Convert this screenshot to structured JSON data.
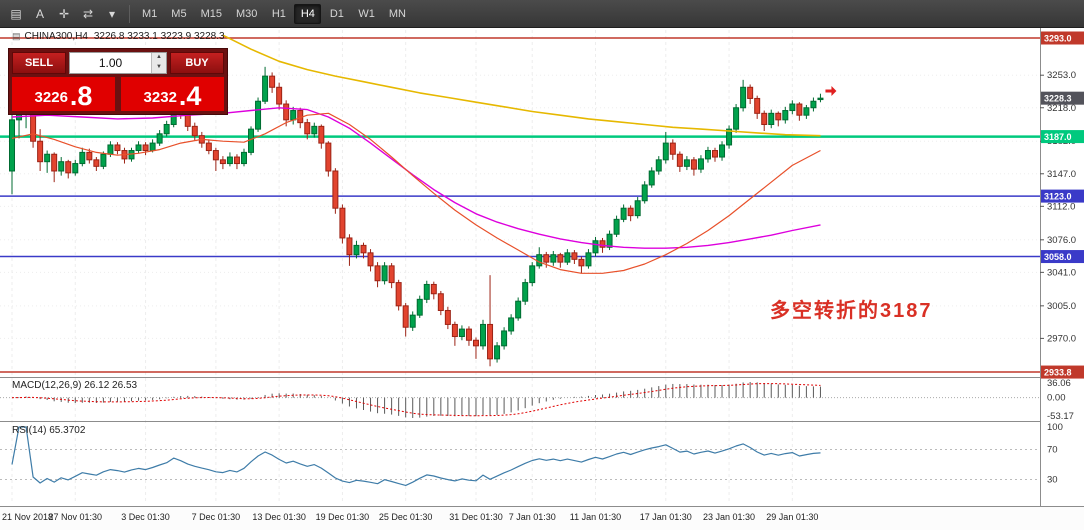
{
  "toolbar": {
    "icons": [
      {
        "name": "new-chart-icon",
        "glyph": "▤"
      },
      {
        "name": "text-label-icon",
        "glyph": "A"
      },
      {
        "name": "crosshair-icon",
        "glyph": "✛"
      },
      {
        "name": "templates-icon",
        "glyph": "⇄"
      },
      {
        "name": "chevron-down-icon",
        "glyph": "▾"
      }
    ],
    "timeframes": [
      "M1",
      "M5",
      "M15",
      "M30",
      "H1",
      "H4",
      "D1",
      "W1",
      "MN"
    ],
    "active_timeframe": "H4"
  },
  "chart_data": {
    "type": "candlestick",
    "symbol": "CHINA300",
    "period": "H4",
    "title_symbol": "CHINA300,H4",
    "title_ohlc": "3226.8 3233.1 3223.9 3228.3",
    "annotation": {
      "text": "多空转折的3187"
    },
    "y_ticks": [
      "3253.0",
      "3218.0",
      "3182.0",
      "3147.0",
      "3112.0",
      "3076.0",
      "3041.0",
      "3005.0",
      "2970.0"
    ],
    "levels": [
      {
        "price": 3293.0,
        "label": "3293.0",
        "color": "#C0392B",
        "width": 1.5
      },
      {
        "price": 3228.3,
        "label": "3228.3",
        "color": "#53535B",
        "line": false
      },
      {
        "price": 3187.0,
        "label": "3187.0",
        "color": "#00C97E",
        "width": 2.5
      },
      {
        "price": 3123.0,
        "label": "3123.0",
        "color": "#3A3AC8",
        "width": 1.5
      },
      {
        "price": 3058.0,
        "label": "3058.0",
        "color": "#3A3AC8",
        "width": 1.5
      },
      {
        "price": 2933.8,
        "label": "2933.8",
        "color": "#C0392B",
        "width": 1.5
      }
    ],
    "x_labels": [
      {
        "text": "21 Nov 2018",
        "index": 0
      },
      {
        "text": "27 Nov 01:30",
        "index": 9
      },
      {
        "text": "3 Dec 01:30",
        "index": 19
      },
      {
        "text": "7 Dec 01:30",
        "index": 29
      },
      {
        "text": "13 Dec 01:30",
        "index": 38
      },
      {
        "text": "19 Dec 01:30",
        "index": 47
      },
      {
        "text": "25 Dec 01:30",
        "index": 56
      },
      {
        "text": "31 Dec 01:30",
        "index": 66
      },
      {
        "text": "7 Jan 01:30",
        "index": 74
      },
      {
        "text": "11 Jan 01:30",
        "index": 83
      },
      {
        "text": "17 Jan 01:30",
        "index": 93
      },
      {
        "text": "23 Jan 01:30",
        "index": 102
      },
      {
        "text": "29 Jan 01:30",
        "index": 111
      }
    ],
    "candles": [
      [
        3150,
        3215,
        3125,
        3205
      ],
      [
        3205,
        3232,
        3185,
        3218
      ],
      [
        3218,
        3235,
        3196,
        3228
      ],
      [
        3228,
        3230,
        3175,
        3182
      ],
      [
        3182,
        3195,
        3150,
        3160
      ],
      [
        3160,
        3172,
        3148,
        3168
      ],
      [
        3168,
        3170,
        3138,
        3150
      ],
      [
        3150,
        3165,
        3145,
        3160
      ],
      [
        3160,
        3162,
        3142,
        3148
      ],
      [
        3148,
        3162,
        3145,
        3158
      ],
      [
        3158,
        3175,
        3155,
        3170
      ],
      [
        3170,
        3174,
        3158,
        3162
      ],
      [
        3162,
        3165,
        3150,
        3155
      ],
      [
        3155,
        3171,
        3152,
        3168
      ],
      [
        3168,
        3182,
        3165,
        3178
      ],
      [
        3178,
        3181,
        3168,
        3172
      ],
      [
        3172,
        3175,
        3158,
        3163
      ],
      [
        3163,
        3175,
        3160,
        3172
      ],
      [
        3172,
        3182,
        3169,
        3178
      ],
      [
        3178,
        3181,
        3167,
        3172
      ],
      [
        3172,
        3184,
        3170,
        3180
      ],
      [
        3180,
        3194,
        3177,
        3190
      ],
      [
        3190,
        3204,
        3187,
        3200
      ],
      [
        3200,
        3228,
        3197,
        3222
      ],
      [
        3222,
        3226,
        3206,
        3212
      ],
      [
        3212,
        3215,
        3193,
        3198
      ],
      [
        3198,
        3202,
        3183,
        3188
      ],
      [
        3188,
        3192,
        3175,
        3180
      ],
      [
        3180,
        3184,
        3168,
        3172
      ],
      [
        3172,
        3175,
        3150,
        3162
      ],
      [
        3162,
        3166,
        3152,
        3158
      ],
      [
        3158,
        3170,
        3155,
        3165
      ],
      [
        3165,
        3168,
        3152,
        3158
      ],
      [
        3158,
        3174,
        3155,
        3170
      ],
      [
        3170,
        3198,
        3167,
        3195
      ],
      [
        3195,
        3229,
        3192,
        3225
      ],
      [
        3225,
        3262,
        3222,
        3252
      ],
      [
        3252,
        3256,
        3234,
        3240
      ],
      [
        3240,
        3245,
        3216,
        3222
      ],
      [
        3222,
        3226,
        3198,
        3205
      ],
      [
        3205,
        3219,
        3200,
        3215
      ],
      [
        3215,
        3218,
        3196,
        3202
      ],
      [
        3202,
        3206,
        3184,
        3190
      ],
      [
        3190,
        3202,
        3186,
        3198
      ],
      [
        3198,
        3200,
        3174,
        3180
      ],
      [
        3180,
        3182,
        3144,
        3150
      ],
      [
        3150,
        3153,
        3104,
        3110
      ],
      [
        3110,
        3114,
        3072,
        3078
      ],
      [
        3078,
        3082,
        3048,
        3060
      ],
      [
        3060,
        3075,
        3056,
        3070
      ],
      [
        3070,
        3073,
        3056,
        3062
      ],
      [
        3062,
        3066,
        3042,
        3048
      ],
      [
        3048,
        3052,
        3025,
        3032
      ],
      [
        3032,
        3052,
        3028,
        3048
      ],
      [
        3048,
        3051,
        3024,
        3030
      ],
      [
        3030,
        3033,
        3000,
        3005
      ],
      [
        3005,
        3008,
        2972,
        2982
      ],
      [
        2982,
        2999,
        2978,
        2995
      ],
      [
        2995,
        3016,
        2992,
        3012
      ],
      [
        3012,
        3032,
        3008,
        3028
      ],
      [
        3028,
        3031,
        3012,
        3018
      ],
      [
        3018,
        3021,
        2995,
        3000
      ],
      [
        3000,
        3004,
        2980,
        2985
      ],
      [
        2985,
        2988,
        2962,
        2972
      ],
      [
        2972,
        2984,
        2968,
        2980
      ],
      [
        2980,
        2983,
        2962,
        2968
      ],
      [
        2968,
        2971,
        2948,
        2962
      ],
      [
        2962,
        2990,
        2958,
        2985
      ],
      [
        2985,
        3038,
        2940,
        2948
      ],
      [
        2948,
        2966,
        2944,
        2962
      ],
      [
        2962,
        2982,
        2958,
        2978
      ],
      [
        2978,
        2996,
        2974,
        2992
      ],
      [
        2992,
        3014,
        2989,
        3010
      ],
      [
        3010,
        3034,
        3006,
        3030
      ],
      [
        3030,
        3052,
        3026,
        3048
      ],
      [
        3048,
        3068,
        3045,
        3060
      ],
      [
        3060,
        3063,
        3046,
        3052
      ],
      [
        3052,
        3064,
        3048,
        3060
      ],
      [
        3060,
        3062,
        3046,
        3052
      ],
      [
        3052,
        3066,
        3049,
        3062
      ],
      [
        3062,
        3065,
        3050,
        3055
      ],
      [
        3055,
        3058,
        3040,
        3048
      ],
      [
        3048,
        3066,
        3045,
        3062
      ],
      [
        3062,
        3079,
        3058,
        3075
      ],
      [
        3075,
        3078,
        3062,
        3068
      ],
      [
        3068,
        3086,
        3065,
        3082
      ],
      [
        3082,
        3102,
        3079,
        3098
      ],
      [
        3098,
        3114,
        3095,
        3110
      ],
      [
        3110,
        3113,
        3096,
        3102
      ],
      [
        3102,
        3122,
        3099,
        3118
      ],
      [
        3118,
        3139,
        3115,
        3135
      ],
      [
        3135,
        3154,
        3132,
        3150
      ],
      [
        3150,
        3166,
        3146,
        3162
      ],
      [
        3162,
        3192,
        3158,
        3180
      ],
      [
        3180,
        3184,
        3162,
        3168
      ],
      [
        3168,
        3171,
        3149,
        3155
      ],
      [
        3155,
        3166,
        3151,
        3162
      ],
      [
        3162,
        3165,
        3145,
        3152
      ],
      [
        3152,
        3167,
        3148,
        3163
      ],
      [
        3163,
        3176,
        3159,
        3172
      ],
      [
        3172,
        3175,
        3160,
        3165
      ],
      [
        3165,
        3182,
        3161,
        3178
      ],
      [
        3178,
        3199,
        3174,
        3195
      ],
      [
        3195,
        3222,
        3191,
        3218
      ],
      [
        3218,
        3248,
        3214,
        3240
      ],
      [
        3240,
        3243,
        3222,
        3228
      ],
      [
        3228,
        3231,
        3206,
        3212
      ],
      [
        3212,
        3215,
        3193,
        3200
      ],
      [
        3200,
        3216,
        3196,
        3212
      ],
      [
        3212,
        3214,
        3198,
        3205
      ],
      [
        3205,
        3219,
        3201,
        3215
      ],
      [
        3215,
        3226,
        3211,
        3222
      ],
      [
        3222,
        3224,
        3204,
        3210
      ],
      [
        3210,
        3221,
        3206,
        3218
      ],
      [
        3218,
        3229,
        3214,
        3225
      ],
      [
        3226.8,
        3233.1,
        3223.9,
        3228.3
      ]
    ],
    "ma_lines": [
      {
        "name": "ma-slow-yellow",
        "color": "#E6B800",
        "width": 1.6,
        "points": [
          [
            30,
            3296
          ],
          [
            34,
            3281
          ],
          [
            38,
            3268
          ],
          [
            42,
            3259
          ],
          [
            46,
            3252
          ],
          [
            50,
            3246
          ],
          [
            54,
            3240
          ],
          [
            58,
            3234
          ],
          [
            62,
            3229
          ],
          [
            66,
            3224
          ],
          [
            70,
            3219
          ],
          [
            74,
            3214
          ],
          [
            78,
            3210
          ],
          [
            82,
            3206
          ],
          [
            86,
            3203
          ],
          [
            90,
            3200
          ],
          [
            94,
            3197
          ],
          [
            98,
            3195
          ],
          [
            102,
            3193
          ],
          [
            106,
            3191
          ],
          [
            110,
            3189
          ],
          [
            115,
            3188
          ]
        ]
      },
      {
        "name": "ma-mid-magenta",
        "color": "#DD00DD",
        "width": 1.4,
        "points": [
          [
            0,
            3208
          ],
          [
            5,
            3210
          ],
          [
            10,
            3208
          ],
          [
            15,
            3206
          ],
          [
            20,
            3207
          ],
          [
            25,
            3210
          ],
          [
            30,
            3212
          ],
          [
            34,
            3215
          ],
          [
            38,
            3218
          ],
          [
            42,
            3216
          ],
          [
            45,
            3208
          ],
          [
            48,
            3196
          ],
          [
            51,
            3180
          ],
          [
            54,
            3163
          ],
          [
            57,
            3146
          ],
          [
            60,
            3130
          ],
          [
            63,
            3116
          ],
          [
            66,
            3104
          ],
          [
            69,
            3095
          ],
          [
            72,
            3088
          ],
          [
            75,
            3082
          ],
          [
            78,
            3077
          ],
          [
            81,
            3073
          ],
          [
            84,
            3070
          ],
          [
            87,
            3068
          ],
          [
            90,
            3067
          ],
          [
            93,
            3067
          ],
          [
            96,
            3068
          ],
          [
            99,
            3070
          ],
          [
            102,
            3073
          ],
          [
            105,
            3077
          ],
          [
            108,
            3081
          ],
          [
            111,
            3086
          ],
          [
            115,
            3092
          ]
        ]
      },
      {
        "name": "ma-fast-red",
        "color": "#E8502A",
        "width": 1.2,
        "points": [
          [
            0,
            3185
          ],
          [
            3,
            3190
          ],
          [
            6,
            3184
          ],
          [
            9,
            3176
          ],
          [
            12,
            3170
          ],
          [
            15,
            3167
          ],
          [
            18,
            3169
          ],
          [
            21,
            3173
          ],
          [
            24,
            3180
          ],
          [
            27,
            3184
          ],
          [
            30,
            3182
          ],
          [
            33,
            3181
          ],
          [
            36,
            3190
          ],
          [
            39,
            3202
          ],
          [
            42,
            3210
          ],
          [
            45,
            3212
          ],
          [
            48,
            3200
          ],
          [
            51,
            3184
          ],
          [
            54,
            3165
          ],
          [
            57,
            3145
          ],
          [
            60,
            3126
          ],
          [
            63,
            3108
          ],
          [
            66,
            3092
          ],
          [
            69,
            3078
          ],
          [
            72,
            3065
          ],
          [
            75,
            3052
          ],
          [
            78,
            3044
          ],
          [
            81,
            3040
          ],
          [
            84,
            3040
          ],
          [
            87,
            3043
          ],
          [
            90,
            3050
          ],
          [
            93,
            3060
          ],
          [
            96,
            3072
          ],
          [
            99,
            3086
          ],
          [
            102,
            3102
          ],
          [
            105,
            3120
          ],
          [
            108,
            3138
          ],
          [
            111,
            3156
          ],
          [
            115,
            3172
          ]
        ]
      }
    ],
    "marker": {
      "index": 115,
      "price": 3236
    },
    "colors": {
      "bull": "#00A24C",
      "bull_border": "#006B31",
      "bear": "#E2442F",
      "bear_border": "#9C2315",
      "grid": "#ededed",
      "rsi": "#3E7CA8",
      "macd_bar": "#5a5a5a",
      "macd_signal": "#E00000",
      "marker": "#E02020"
    }
  },
  "macd": {
    "title": "MACD(12,26,9) 26.12 26.53",
    "fast": 12,
    "slow": 26,
    "signal": 9,
    "axis_labels": [
      "36.06",
      "0.00",
      "-53.17"
    ]
  },
  "rsi": {
    "title": "RSI(14) 65.3702",
    "period": 14,
    "axis_labels": [
      "100",
      "70",
      "30"
    ],
    "levels": [
      70,
      30
    ]
  },
  "trade_panel": {
    "sell_label": "SELL",
    "buy_label": "BUY",
    "volume": "1.00",
    "bid_main": "3226",
    "bid_frac": ".8",
    "ask_main": "3232",
    "ask_frac": ".4"
  }
}
